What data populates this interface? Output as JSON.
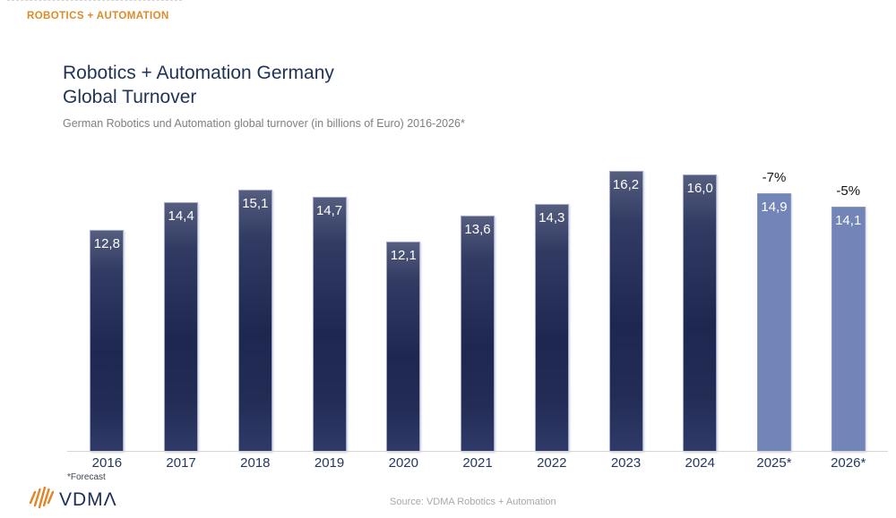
{
  "header": {
    "brand": "ROBOTICS + AUTOMATION"
  },
  "title": {
    "line1": "Robotics + Automation Germany",
    "line2": "Global Turnover"
  },
  "subtitle": "German Robotics und Automation global turnover (in billions of Euro) 2016-2026*",
  "footnote": "*Forecast",
  "source": "Source: VDMA Robotics + Automation",
  "logo": {
    "text": "VDMΛ"
  },
  "colors": {
    "accent_orange": "#DE8A27",
    "bar_dark": "#1F2A52",
    "bar_forecast": "#7384B8",
    "title_navy": "#1F3356",
    "axis_gray": "#D6D6D6",
    "value_label": "#FFFFFF"
  },
  "chart_data": {
    "type": "bar",
    "title": "Robotics + Automation Germany Global Turnover",
    "xlabel": "",
    "ylabel": "turnover (billions of Euro)",
    "ylim": [
      0,
      17.5
    ],
    "grid": false,
    "legend": false,
    "categories": [
      "2016",
      "2017",
      "2018",
      "2019",
      "2020",
      "2021",
      "2022",
      "2023",
      "2024",
      "2025*",
      "2026*"
    ],
    "values": [
      12.8,
      14.4,
      15.1,
      14.7,
      12.1,
      13.6,
      14.3,
      16.2,
      16.0,
      14.9,
      14.1
    ],
    "value_labels": [
      "12,8",
      "14,4",
      "15,1",
      "14,7",
      "12,1",
      "13,6",
      "14,3",
      "16,2",
      "16,0",
      "14,9",
      "14,1"
    ],
    "forecast_flags": [
      false,
      false,
      false,
      false,
      false,
      false,
      false,
      false,
      false,
      true,
      true
    ],
    "annotations": [
      {
        "category": "2025*",
        "label": "-7%"
      },
      {
        "category": "2026*",
        "label": "-5%"
      }
    ]
  }
}
